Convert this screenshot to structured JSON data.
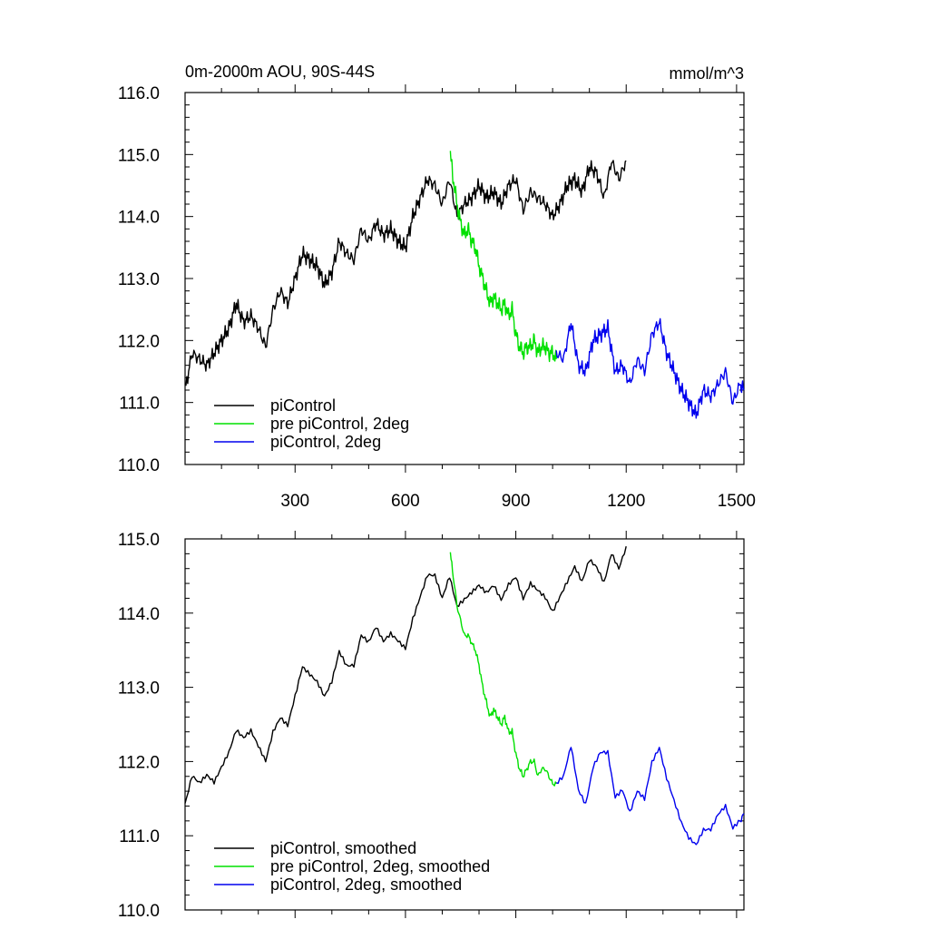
{
  "colors": {
    "piControl": "#000000",
    "pre2deg": "#00e000",
    "pi2deg": "#0000ee"
  },
  "chart_data": [
    {
      "type": "line",
      "title": "0m-2000m AOU, 90S-44S",
      "units": "mmol/m^3",
      "xlim": [
        1,
        1520
      ],
      "ylim": [
        110,
        116
      ],
      "xticks": [
        300,
        600,
        900,
        1200,
        1500
      ],
      "xtick_labels": [
        "300",
        "600",
        "900",
        "1200",
        "1500"
      ],
      "yticks": [
        110,
        111,
        112,
        113,
        114,
        115,
        116
      ],
      "ytick_labels": [
        "110.0",
        "111.0",
        "112.0",
        "113.0",
        "114.0",
        "115.0",
        "116.0"
      ],
      "legend": [
        "piControl",
        "pre piControl, 2deg",
        "piControl, 2deg"
      ],
      "series": [
        {
          "name": "piControl",
          "color_key": "piControl",
          "x": [
            1,
            20,
            40,
            60,
            80,
            100,
            120,
            140,
            160,
            180,
            200,
            220,
            240,
            260,
            280,
            300,
            320,
            340,
            360,
            380,
            400,
            420,
            440,
            460,
            480,
            500,
            520,
            540,
            560,
            580,
            600,
            620,
            640,
            660,
            680,
            700,
            720,
            740,
            760,
            780,
            800,
            820,
            840,
            860,
            880,
            900,
            920,
            940,
            960,
            980,
            1000,
            1020,
            1040,
            1060,
            1080,
            1100,
            1120,
            1140,
            1160,
            1180,
            1200
          ],
          "y": [
            111.2,
            111.8,
            111.7,
            111.6,
            111.8,
            112.0,
            112.2,
            112.6,
            112.3,
            112.4,
            112.2,
            111.9,
            112.5,
            112.8,
            112.6,
            113.0,
            113.4,
            113.3,
            113.2,
            112.9,
            113.1,
            113.6,
            113.4,
            113.3,
            113.8,
            113.6,
            113.9,
            113.7,
            113.8,
            113.6,
            113.5,
            114.0,
            114.3,
            114.6,
            114.5,
            114.2,
            114.6,
            114.0,
            114.2,
            114.3,
            114.5,
            114.3,
            114.4,
            114.2,
            114.5,
            114.6,
            114.1,
            114.4,
            114.3,
            114.2,
            114.0,
            114.2,
            114.5,
            114.6,
            114.4,
            114.8,
            114.7,
            114.3,
            114.9,
            114.6,
            114.9
          ]
        },
        {
          "name": "pre piControl, 2deg",
          "color_key": "pre2deg",
          "x": [
            722,
            730,
            740,
            750,
            760,
            770,
            780,
            790,
            800,
            810,
            820,
            830,
            840,
            850,
            860,
            870,
            880,
            890,
            900,
            910,
            920,
            930,
            940,
            950,
            960,
            970,
            980,
            990,
            1000,
            1010
          ],
          "y": [
            115.0,
            114.6,
            114.2,
            113.9,
            113.7,
            113.8,
            113.6,
            113.5,
            113.2,
            113.0,
            112.8,
            112.6,
            112.7,
            112.6,
            112.5,
            112.6,
            112.4,
            112.5,
            112.1,
            111.9,
            111.8,
            111.9,
            111.9,
            112.0,
            111.8,
            111.9,
            111.9,
            111.8,
            111.8,
            111.7
          ]
        },
        {
          "name": "piControl, 2deg",
          "color_key": "pi2deg",
          "x": [
            1010,
            1030,
            1050,
            1070,
            1090,
            1110,
            1130,
            1150,
            1170,
            1190,
            1210,
            1230,
            1250,
            1270,
            1290,
            1310,
            1330,
            1350,
            1370,
            1390,
            1410,
            1430,
            1450,
            1470,
            1490,
            1510,
            1520
          ],
          "y": [
            111.8,
            111.7,
            112.3,
            111.6,
            111.5,
            112.0,
            112.1,
            112.2,
            111.5,
            111.6,
            111.3,
            111.7,
            111.5,
            112.1,
            112.3,
            111.8,
            111.5,
            111.2,
            111.0,
            110.8,
            111.2,
            111.1,
            111.3,
            111.5,
            111.0,
            111.3,
            111.2
          ]
        }
      ]
    },
    {
      "type": "line",
      "title": "",
      "xlim": [
        1,
        1520
      ],
      "ylim": [
        110,
        115
      ],
      "xticks": [
        300,
        600,
        900,
        1200,
        1500
      ],
      "yticks": [
        110,
        111,
        112,
        113,
        114,
        115
      ],
      "ytick_labels": [
        "110.0",
        "111.0",
        "112.0",
        "113.0",
        "114.0",
        "115.0"
      ],
      "legend": [
        "piControl, smoothed",
        "pre piControl, 2deg, smoothed",
        "piControl, 2deg, smoothed"
      ],
      "series": [
        {
          "name": "piControl, smoothed",
          "color_key": "piControl",
          "x": [
            1,
            20,
            40,
            60,
            80,
            100,
            120,
            140,
            160,
            180,
            200,
            220,
            240,
            260,
            280,
            300,
            320,
            340,
            360,
            380,
            400,
            420,
            440,
            460,
            480,
            500,
            520,
            540,
            560,
            580,
            600,
            620,
            640,
            660,
            680,
            700,
            720,
            740,
            760,
            780,
            800,
            820,
            840,
            860,
            880,
            900,
            920,
            940,
            960,
            980,
            1000,
            1020,
            1040,
            1060,
            1080,
            1100,
            1120,
            1140,
            1160,
            1180,
            1200
          ],
          "y": [
            111.4,
            111.8,
            111.7,
            111.8,
            111.7,
            111.9,
            112.1,
            112.4,
            112.3,
            112.4,
            112.2,
            112.0,
            112.4,
            112.6,
            112.5,
            112.9,
            113.3,
            113.2,
            113.1,
            112.9,
            113.1,
            113.5,
            113.3,
            113.3,
            113.7,
            113.6,
            113.8,
            113.6,
            113.7,
            113.6,
            113.5,
            113.9,
            114.2,
            114.5,
            114.5,
            114.2,
            114.5,
            114.1,
            114.2,
            114.3,
            114.4,
            114.3,
            114.4,
            114.2,
            114.4,
            114.5,
            114.2,
            114.4,
            114.3,
            114.2,
            114.0,
            114.2,
            114.4,
            114.6,
            114.4,
            114.7,
            114.6,
            114.4,
            114.8,
            114.6,
            114.9
          ]
        },
        {
          "name": "pre piControl, 2deg, smoothed",
          "color_key": "pre2deg",
          "x": [
            722,
            730,
            740,
            750,
            760,
            770,
            780,
            790,
            800,
            810,
            820,
            830,
            840,
            850,
            860,
            870,
            880,
            890,
            900,
            910,
            920,
            930,
            940,
            950,
            960,
            970,
            980,
            990,
            1000,
            1010
          ],
          "y": [
            114.8,
            114.5,
            114.1,
            113.9,
            113.7,
            113.7,
            113.6,
            113.5,
            113.3,
            113.0,
            112.8,
            112.6,
            112.7,
            112.6,
            112.5,
            112.6,
            112.4,
            112.4,
            112.1,
            111.9,
            111.8,
            111.9,
            112.0,
            112.0,
            111.8,
            111.9,
            111.9,
            111.8,
            111.7,
            111.7
          ]
        },
        {
          "name": "piControl, 2deg, smoothed",
          "color_key": "pi2deg",
          "x": [
            1010,
            1030,
            1050,
            1070,
            1090,
            1110,
            1130,
            1150,
            1170,
            1190,
            1210,
            1230,
            1250,
            1270,
            1290,
            1310,
            1330,
            1350,
            1370,
            1390,
            1410,
            1430,
            1450,
            1470,
            1490,
            1510,
            1520
          ],
          "y": [
            111.7,
            111.8,
            112.2,
            111.6,
            111.4,
            111.9,
            112.1,
            112.1,
            111.5,
            111.6,
            111.3,
            111.6,
            111.5,
            112.0,
            112.2,
            111.8,
            111.5,
            111.2,
            111.0,
            110.9,
            111.1,
            111.1,
            111.3,
            111.4,
            111.1,
            111.2,
            111.3
          ]
        }
      ]
    }
  ]
}
